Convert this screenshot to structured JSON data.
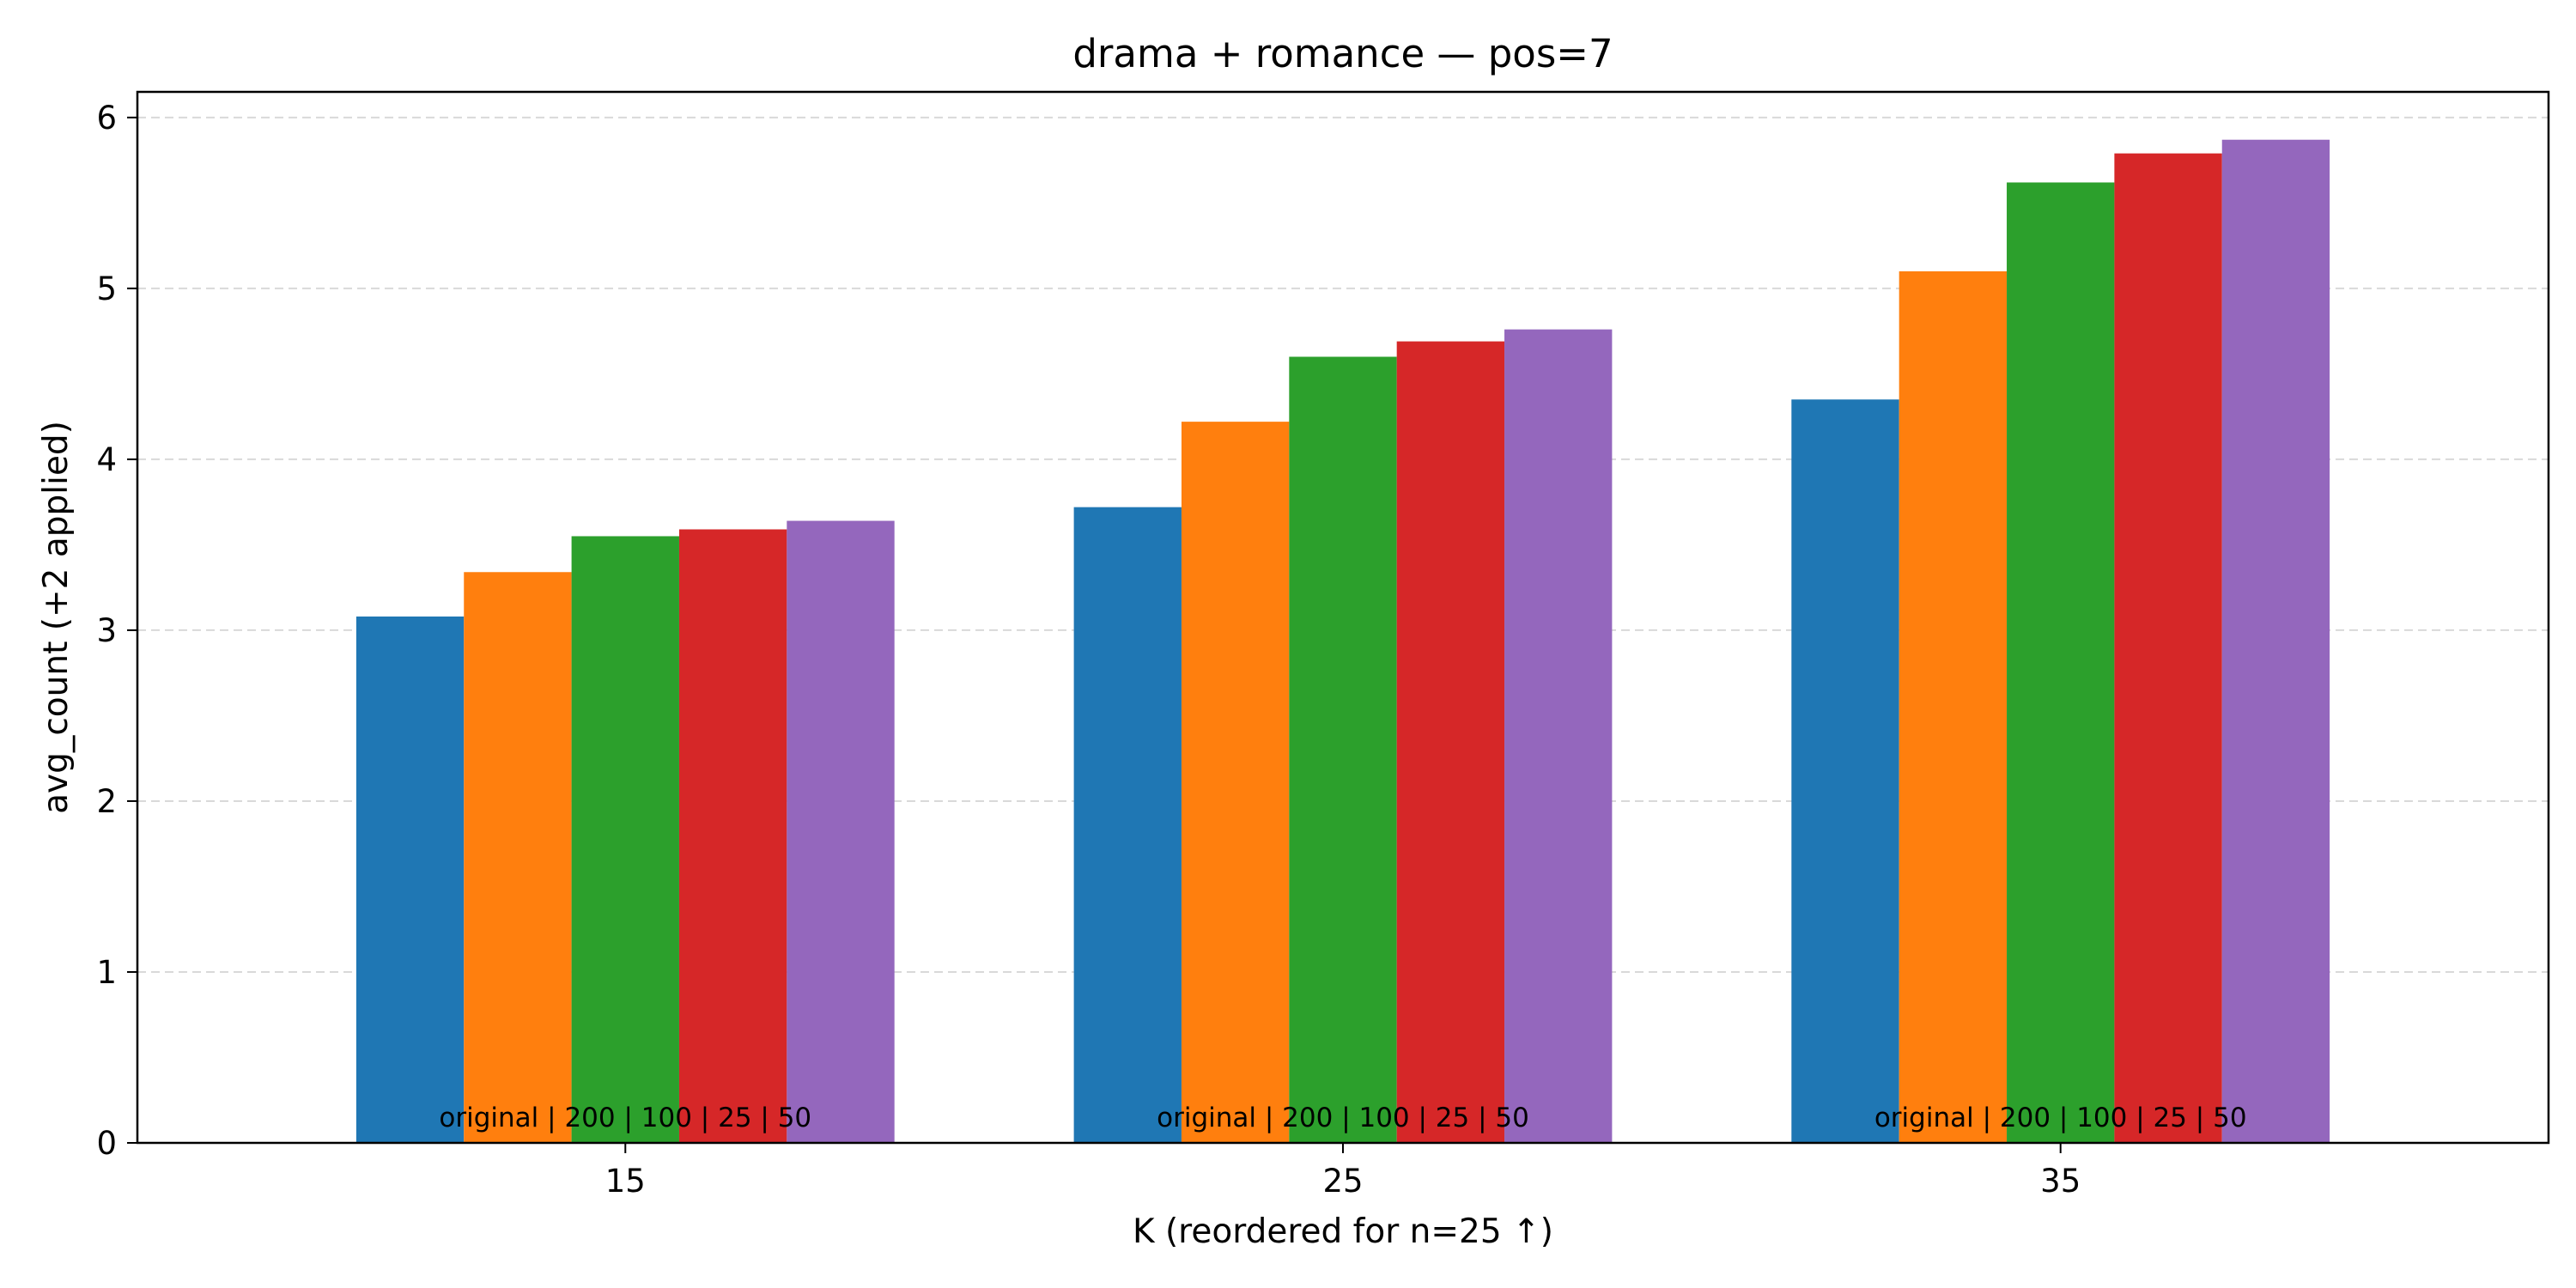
{
  "chart_data": {
    "type": "bar",
    "title": "drama + romance — pos=7",
    "xlabel": "K (reordered for n=25 ↑)",
    "ylabel": "avg_count (+2 applied)",
    "categories": [
      "15",
      "25",
      "35"
    ],
    "ylim": [
      0,
      6.15
    ],
    "yticks": [
      0,
      1,
      2,
      3,
      4,
      5,
      6
    ],
    "grid": "horizontal dashed",
    "legend": "none",
    "group_annotation": "original | 200 | 100 | 25 | 50",
    "series": [
      {
        "values": [
          3.08,
          3.72,
          4.35
        ],
        "color": "#1f77b4"
      },
      {
        "values": [
          3.34,
          4.22,
          5.1
        ],
        "color": "#ff7f0e"
      },
      {
        "values": [
          3.55,
          4.6,
          5.62
        ],
        "color": "#2ca02c"
      },
      {
        "values": [
          3.59,
          4.69,
          5.79
        ],
        "color": "#d62728"
      },
      {
        "values": [
          3.64,
          4.76,
          5.87
        ],
        "color": "#9467bd"
      }
    ]
  }
}
